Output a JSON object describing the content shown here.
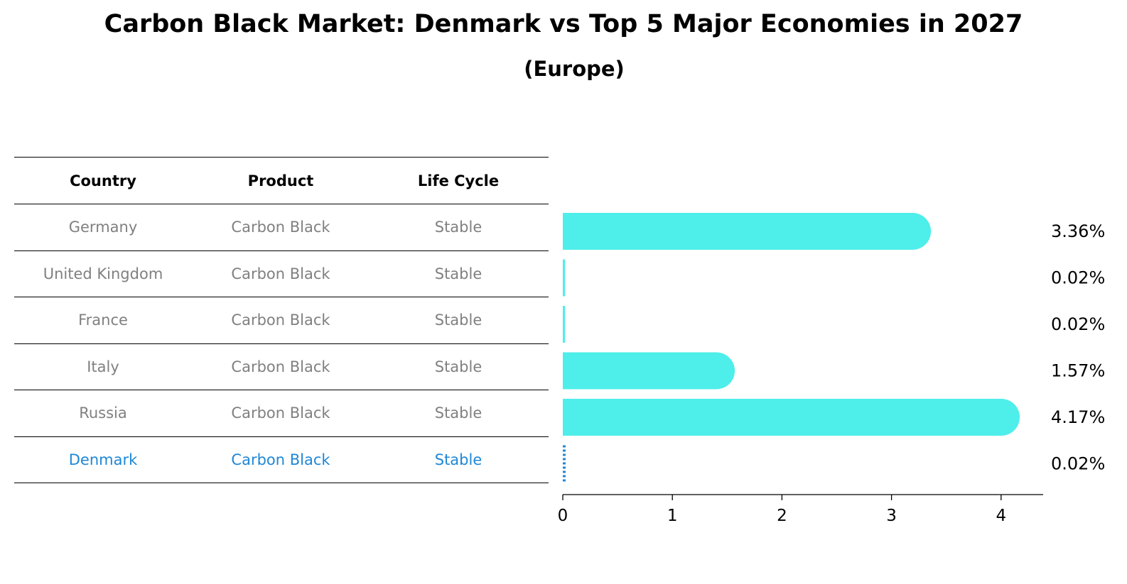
{
  "title": "Carbon Black Market: Denmark vs Top 5 Major Economies in 2027",
  "subtitle": "(Europe)",
  "table": {
    "headers": [
      "Country",
      "Product",
      "Life Cycle"
    ],
    "rows": [
      {
        "country": "Germany",
        "product": "Carbon Black",
        "life_cycle": "Stable"
      },
      {
        "country": "United Kingdom",
        "product": "Carbon Black",
        "life_cycle": "Stable"
      },
      {
        "country": "France",
        "product": "Carbon Black",
        "life_cycle": "Stable"
      },
      {
        "country": "Italy",
        "product": "Carbon Black",
        "life_cycle": "Stable"
      },
      {
        "country": "Russia",
        "product": "Carbon Black",
        "life_cycle": "Stable"
      },
      {
        "country": "Denmark",
        "product": "Carbon Black",
        "life_cycle": "Stable"
      }
    ]
  },
  "colors": {
    "bar": "#4eeeea",
    "highlight": "#1f87d6",
    "muted_text": "#808080"
  },
  "chart_data": {
    "type": "bar",
    "orientation": "horizontal",
    "categories": [
      "Germany",
      "United Kingdom",
      "France",
      "Italy",
      "Russia",
      "Denmark"
    ],
    "values": [
      3.36,
      0.02,
      0.02,
      1.57,
      4.17,
      0.02
    ],
    "value_labels": [
      "3.36%",
      "0.02%",
      "0.02%",
      "1.57%",
      "4.17%",
      "0.02%"
    ],
    "xticks": [
      "0",
      "1",
      "2",
      "3",
      "4"
    ],
    "xlim": [
      0,
      4.4
    ],
    "highlight": "Denmark",
    "grid": false
  }
}
